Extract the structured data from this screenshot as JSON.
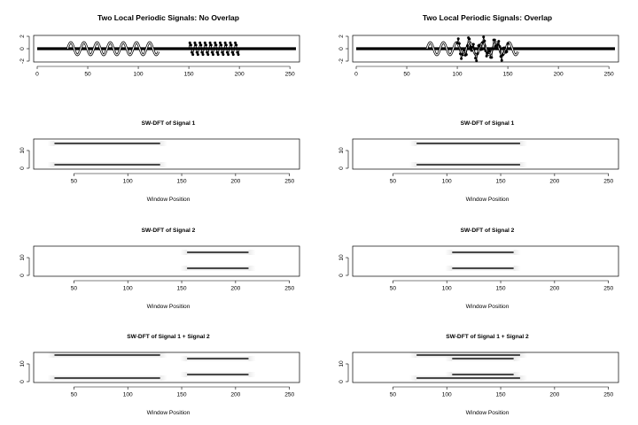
{
  "chart_data": [
    {
      "id": "p1",
      "type": "line",
      "title": "Two Local Periodic Signals: No Overlap",
      "xlabel": "",
      "ylabel": "",
      "xlim": [
        0,
        256
      ],
      "ylim": [
        -2,
        2
      ],
      "xticks": [
        0,
        50,
        100,
        150,
        200,
        250
      ],
      "yticks": [
        -2,
        0,
        2
      ],
      "series": [
        {
          "style": "line",
          "segment": [
            30,
            120
          ],
          "amplitude": 1,
          "period": 13,
          "description": "sinusoid"
        },
        {
          "style": "points",
          "segment": [
            150,
            200
          ],
          "amplitude": 1,
          "period": 5,
          "description": "sinusoid"
        },
        {
          "style": "points",
          "segment": [
            0,
            256
          ],
          "amplitude": 0,
          "description": "zero baseline"
        }
      ]
    },
    {
      "id": "p2",
      "type": "line",
      "title": "Two Local Periodic Signals: Overlap",
      "xlabel": "",
      "ylabel": "",
      "xlim": [
        0,
        256
      ],
      "ylim": [
        -2,
        2
      ],
      "xticks": [
        0,
        50,
        100,
        150,
        200,
        250
      ],
      "yticks": [
        -2,
        0,
        2
      ],
      "series": [
        {
          "style": "line",
          "segment": [
            70,
            160
          ],
          "amplitude": 1,
          "period": 13
        },
        {
          "style": "points",
          "segment": [
            100,
            150
          ],
          "amplitude": 1,
          "period": 5
        },
        {
          "style": "points",
          "segment": [
            0,
            256
          ],
          "amplitude": 0
        }
      ]
    },
    {
      "id": "p3",
      "type": "heatmap",
      "title": "SW-DFT of Signal 1",
      "xlabel": "Window Position",
      "ylabel": "",
      "xlim": [
        16,
        256
      ],
      "ylim": [
        0,
        16
      ],
      "xticks": [
        50,
        100,
        150,
        200,
        250
      ],
      "yticks": [
        0,
        10
      ],
      "bands": [
        {
          "start": 32,
          "end": 130,
          "frequency": 2
        },
        {
          "start": 32,
          "end": 130,
          "frequency": 14
        }
      ]
    },
    {
      "id": "p4",
      "type": "heatmap",
      "title": "SW-DFT of Signal 1",
      "xlabel": "Window Position",
      "ylabel": "",
      "xlim": [
        16,
        256
      ],
      "ylim": [
        0,
        16
      ],
      "xticks": [
        50,
        100,
        150,
        200,
        250
      ],
      "yticks": [
        0,
        10
      ],
      "bands": [
        {
          "start": 72,
          "end": 168,
          "frequency": 2
        },
        {
          "start": 72,
          "end": 168,
          "frequency": 14
        }
      ]
    },
    {
      "id": "p5",
      "type": "heatmap",
      "title": "SW-DFT of Signal 2",
      "xlabel": "Window Position",
      "ylabel": "",
      "xlim": [
        16,
        256
      ],
      "ylim": [
        0,
        16
      ],
      "xticks": [
        50,
        100,
        150,
        200,
        250
      ],
      "yticks": [
        0,
        10
      ],
      "bands": [
        {
          "start": 155,
          "end": 212,
          "frequency": 4
        },
        {
          "start": 155,
          "end": 212,
          "frequency": 13
        }
      ]
    },
    {
      "id": "p6",
      "type": "heatmap",
      "title": "SW-DFT of Signal 2",
      "xlabel": "Window Position",
      "ylabel": "",
      "xlim": [
        16,
        256
      ],
      "ylim": [
        0,
        16
      ],
      "xticks": [
        50,
        100,
        150,
        200,
        250
      ],
      "yticks": [
        0,
        10
      ],
      "bands": [
        {
          "start": 105,
          "end": 162,
          "frequency": 4
        },
        {
          "start": 105,
          "end": 162,
          "frequency": 13
        }
      ]
    },
    {
      "id": "p7",
      "type": "heatmap",
      "title": "SW-DFT of Signal 1 + Signal 2",
      "xlabel": "Window Position",
      "ylabel": "",
      "xlim": [
        16,
        256
      ],
      "ylim": [
        0,
        16
      ],
      "xticks": [
        50,
        100,
        150,
        200,
        250
      ],
      "yticks": [
        0,
        10
      ],
      "bands": [
        {
          "start": 32,
          "end": 130,
          "frequency": 2
        },
        {
          "start": 32,
          "end": 130,
          "frequency": 15
        },
        {
          "start": 155,
          "end": 212,
          "frequency": 4
        },
        {
          "start": 155,
          "end": 212,
          "frequency": 13
        }
      ]
    },
    {
      "id": "p8",
      "type": "heatmap",
      "title": "SW-DFT of Signal 1 + Signal 2",
      "xlabel": "Window Position",
      "ylabel": "",
      "xlim": [
        16,
        256
      ],
      "ylim": [
        0,
        16
      ],
      "xticks": [
        50,
        100,
        150,
        200,
        250
      ],
      "yticks": [
        0,
        10
      ],
      "bands": [
        {
          "start": 72,
          "end": 168,
          "frequency": 2
        },
        {
          "start": 72,
          "end": 168,
          "frequency": 15
        },
        {
          "start": 105,
          "end": 162,
          "frequency": 4
        },
        {
          "start": 105,
          "end": 162,
          "frequency": 13
        }
      ]
    }
  ]
}
